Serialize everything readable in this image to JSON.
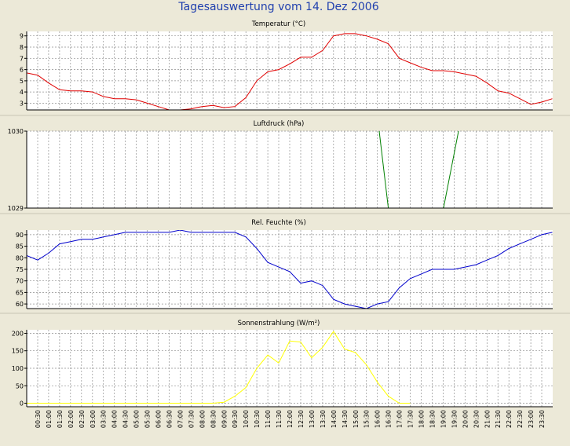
{
  "title": "Tagesauswertung vom 14. Dez 2006",
  "colors": {
    "background": "#ece9d8",
    "title": "#1f3fae",
    "plot_bg": "#ffffff",
    "grid": "#8f8f8f",
    "axis": "#000000",
    "separator": "#c8c5b4"
  },
  "x_time_labels": [
    "00:30",
    "01:00",
    "01:30",
    "02:00",
    "02:30",
    "03:00",
    "03:30",
    "04:00",
    "04:30",
    "05:00",
    "05:30",
    "06:00",
    "06:30",
    "07:00",
    "07:30",
    "08:00",
    "08:30",
    "09:00",
    "09:30",
    "10:00",
    "10:30",
    "11:00",
    "11:30",
    "12:00",
    "12:30",
    "13:00",
    "13:30",
    "14:00",
    "14:30",
    "15:00",
    "15:30",
    "16:00",
    "16:30",
    "17:00",
    "17:30",
    "18:00",
    "18:30",
    "19:00",
    "19:30",
    "20:00",
    "20:30",
    "21:00",
    "21:30",
    "22:00",
    "22:30",
    "23:00",
    "23:30"
  ],
  "chart_data": [
    {
      "type": "line",
      "title": "Temperatur (°C)",
      "color": "#e00000",
      "x": [
        "00:00",
        "00:30",
        "01:00",
        "01:30",
        "02:00",
        "02:30",
        "03:00",
        "03:30",
        "04:00",
        "04:30",
        "05:00",
        "05:30",
        "06:00",
        "06:30",
        "07:00",
        "07:30",
        "08:00",
        "08:30",
        "09:00",
        "09:30",
        "10:00",
        "10:30",
        "11:00",
        "11:30",
        "12:00",
        "12:30",
        "13:00",
        "13:30",
        "14:00",
        "14:30",
        "15:00",
        "15:30",
        "16:00",
        "16:30",
        "17:00",
        "17:30",
        "18:00",
        "18:30",
        "19:00",
        "19:30",
        "20:00",
        "20:30",
        "21:00",
        "21:30",
        "22:00",
        "22:30",
        "23:00",
        "23:30",
        "23:59"
      ],
      "values": [
        5.7,
        5.5,
        4.8,
        4.2,
        4.1,
        4.1,
        4.0,
        3.6,
        3.4,
        3.4,
        3.3,
        3.0,
        2.7,
        2.4,
        2.4,
        2.5,
        2.7,
        2.8,
        2.6,
        2.7,
        3.5,
        5.0,
        5.8,
        6.0,
        6.5,
        7.1,
        7.1,
        7.7,
        9.0,
        9.2,
        9.2,
        9.0,
        8.7,
        8.3,
        7.0,
        6.6,
        6.2,
        5.9,
        5.9,
        5.8,
        5.6,
        5.4,
        4.8,
        4.1,
        3.9,
        3.4,
        2.9,
        3.1,
        3.4
      ],
      "ylim": [
        2.4,
        9.4
      ],
      "yticks": [
        3,
        4,
        5,
        6,
        7,
        8,
        9
      ]
    },
    {
      "type": "line",
      "title": "Luftdruck (hPa)",
      "color": "#008000",
      "x": [
        "15:45",
        "16:30",
        "16:31",
        "19:00",
        "19:01",
        "20:15"
      ],
      "values": [
        1030.8,
        1029.0,
        null,
        null,
        1029.0,
        1030.8
      ],
      "ylim": [
        1029,
        1030
      ],
      "yticks": [
        1029,
        1030
      ]
    },
    {
      "type": "line",
      "title": "Rel. Feuchte (%)",
      "color": "#0000cc",
      "x": [
        "00:00",
        "00:30",
        "01:00",
        "01:30",
        "02:00",
        "02:30",
        "03:00",
        "03:30",
        "04:00",
        "04:30",
        "05:00",
        "05:30",
        "06:00",
        "06:30",
        "07:00",
        "07:30",
        "08:00",
        "08:30",
        "09:00",
        "09:30",
        "10:00",
        "10:30",
        "11:00",
        "11:30",
        "12:00",
        "12:30",
        "13:00",
        "13:30",
        "14:00",
        "14:30",
        "15:00",
        "15:30",
        "16:00",
        "16:30",
        "17:00",
        "17:30",
        "18:00",
        "18:30",
        "19:00",
        "19:30",
        "20:00",
        "20:30",
        "21:00",
        "21:30",
        "22:00",
        "22:30",
        "23:00",
        "23:30",
        "23:59"
      ],
      "values": [
        81,
        79,
        82,
        86,
        87,
        88,
        88,
        89,
        90,
        91,
        91,
        91,
        91,
        91,
        92,
        91,
        91,
        91,
        91,
        91,
        89,
        84,
        78,
        76,
        74,
        69,
        70,
        68,
        62,
        60,
        59,
        58,
        60,
        61,
        67,
        71,
        73,
        75,
        75,
        75,
        76,
        77,
        79,
        81,
        84,
        86,
        88,
        90,
        91
      ],
      "ylim": [
        58,
        92
      ],
      "yticks": [
        60,
        65,
        70,
        75,
        80,
        85,
        90
      ]
    },
    {
      "type": "line",
      "title": "Sonnenstrahlung (W/m²)",
      "color": "#ffff00",
      "x": [
        "00:00",
        "00:30",
        "08:00",
        "08:30",
        "09:00",
        "09:30",
        "10:00",
        "10:30",
        "11:00",
        "11:30",
        "12:00",
        "12:30",
        "13:00",
        "13:30",
        "14:00",
        "14:30",
        "15:00",
        "15:30",
        "16:00",
        "16:30",
        "17:00",
        "17:30",
        "23:59"
      ],
      "values": [
        0,
        0,
        0,
        0,
        3,
        20,
        45,
        100,
        138,
        115,
        178,
        175,
        130,
        160,
        205,
        155,
        145,
        110,
        60,
        20,
        0,
        0,
        null
      ],
      "ylim": [
        -10,
        210
      ],
      "yticks": [
        0,
        50,
        100,
        150,
        200
      ]
    }
  ]
}
